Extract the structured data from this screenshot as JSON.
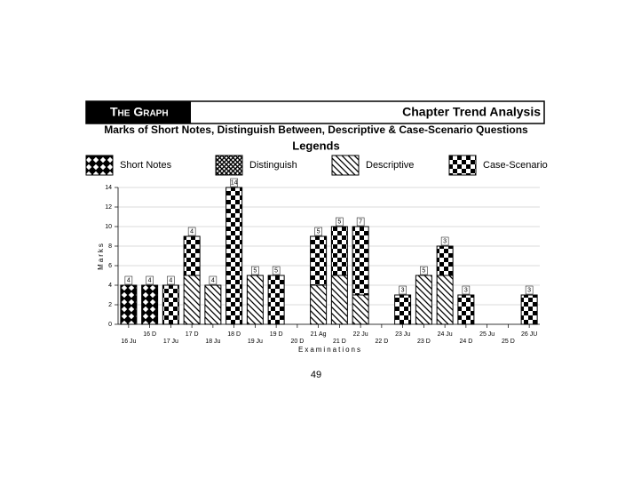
{
  "header": {
    "left": "The Graph",
    "right": "Chapter Trend Analysis"
  },
  "chart_data": {
    "type": "stacked_bar",
    "title": "Marks of Short Notes, Distinguish Between, Descriptive & Case-Scenario Questions",
    "legend_title": "Legends",
    "x_label": "Examinations",
    "y_label": "Marks",
    "categories": [
      "16 Ju",
      "16 D",
      "17 Ju",
      "17 D",
      "18 Ju",
      "18 D",
      "19 Ju",
      "19 D",
      "20 D",
      "21 Ag",
      "21 D",
      "22 Ju",
      "22 D",
      "23 Ju",
      "23 D",
      "24 Ju",
      "24 D",
      "25 Ju",
      "25 D",
      "26 JU"
    ],
    "series": [
      {
        "name": "Short Notes",
        "color": "#000000",
        "values": [
          4,
          4,
          null,
          null,
          null,
          null,
          null,
          null,
          null,
          null,
          null,
          null,
          null,
          null,
          null,
          null,
          null,
          null,
          null,
          null
        ]
      },
      {
        "name": "Distinguish",
        "color": "#000000",
        "values": [
          null,
          null,
          null,
          null,
          null,
          null,
          null,
          null,
          null,
          null,
          null,
          null,
          null,
          null,
          null,
          null,
          null,
          null,
          null,
          null
        ]
      },
      {
        "name": "Descriptive",
        "color": "#000000",
        "values": [
          null,
          null,
          null,
          5,
          4,
          null,
          5,
          null,
          null,
          4,
          5,
          3,
          null,
          null,
          5,
          5,
          null,
          null,
          null,
          null
        ]
      },
      {
        "name": "Case-Scenario",
        "color": "#000000",
        "values": [
          null,
          null,
          4,
          4,
          null,
          14,
          null,
          5,
          null,
          5,
          5,
          7,
          null,
          3,
          null,
          3,
          3,
          null,
          null,
          3
        ]
      }
    ],
    "ylim": [
      0,
      14
    ],
    "yticks": [
      0,
      2,
      4,
      6,
      8,
      10,
      12,
      14
    ],
    "grid": true
  },
  "page_number": "49"
}
